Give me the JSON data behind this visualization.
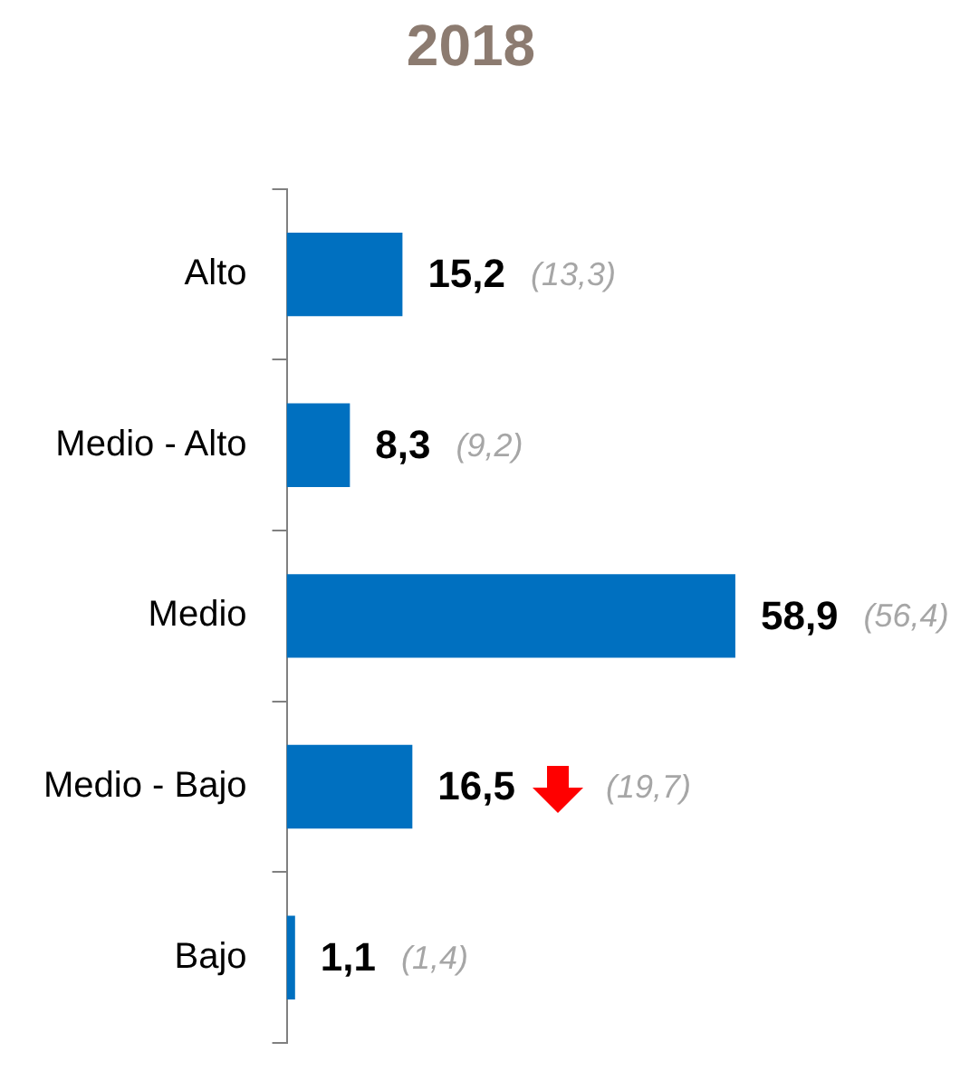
{
  "chart_data": {
    "type": "bar",
    "orientation": "horizontal",
    "title": "2018",
    "categories": [
      "Alto",
      "Medio - Alto",
      "Medio",
      "Medio - Bajo",
      "Bajo"
    ],
    "values": [
      15.2,
      8.3,
      58.9,
      16.5,
      1.1
    ],
    "color": "#0070c0",
    "value_labels": [
      "15,2",
      "8,3",
      "58,9",
      "16,5",
      "1,1"
    ],
    "annotations": [
      "(13,3)",
      "(9,2)",
      "(56,4)",
      "(19,7)",
      "(1,4)"
    ],
    "grid": false,
    "legend": false,
    "tick_labels": "y"
  }
}
